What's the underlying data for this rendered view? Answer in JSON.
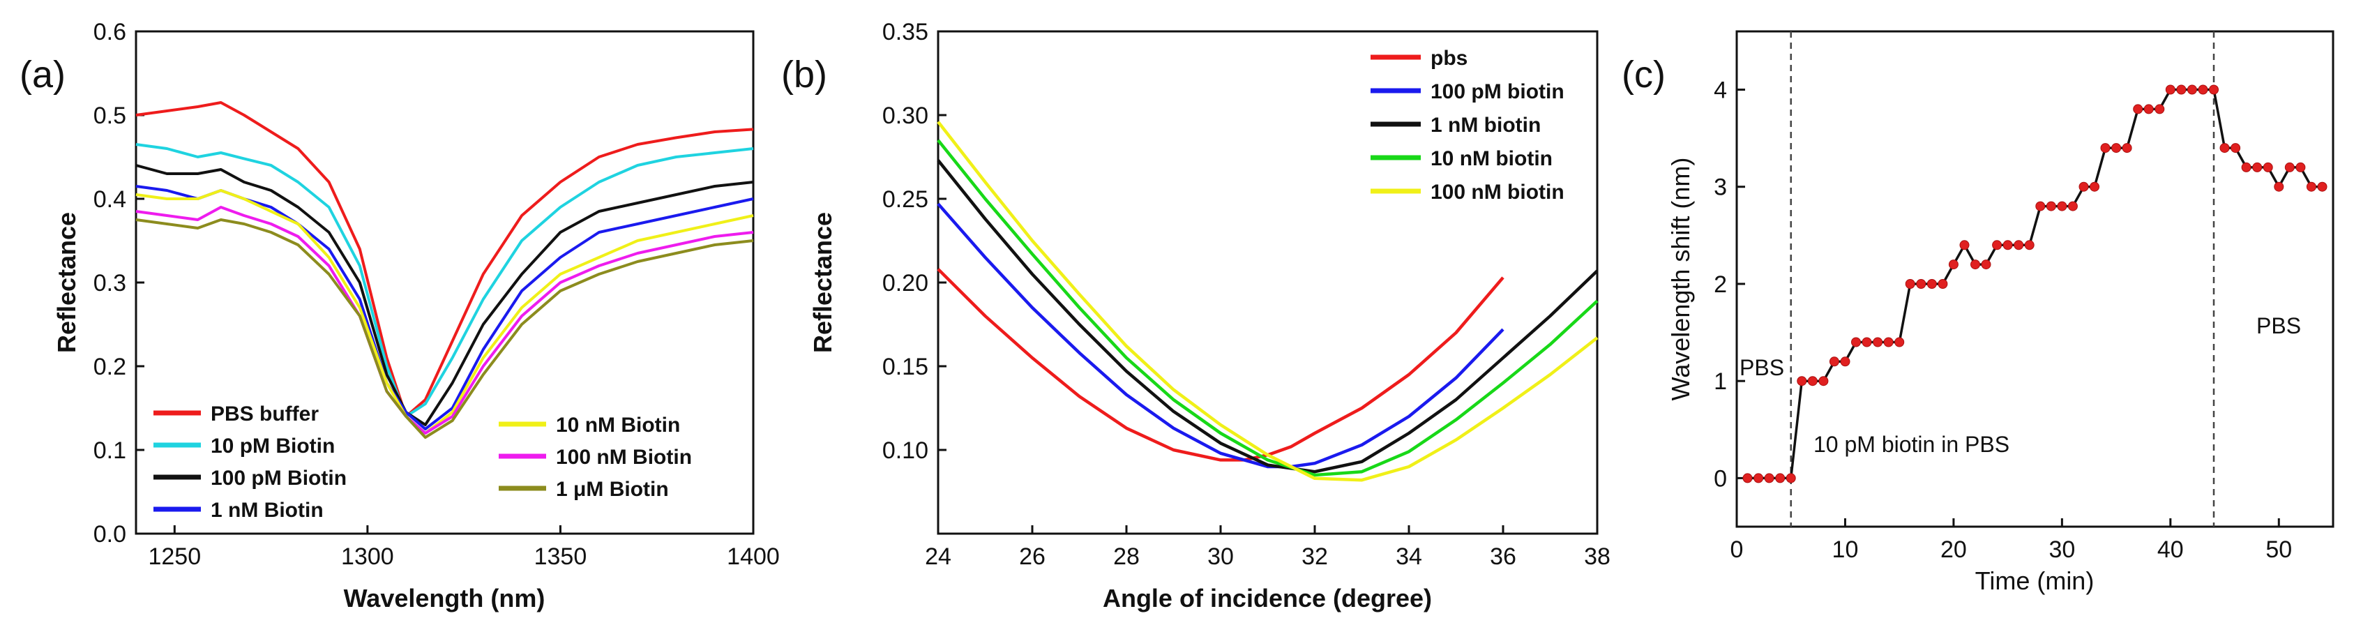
{
  "chart_data": [
    {
      "panel": "(a)",
      "type": "line",
      "xlabel": "Wavelength (nm)",
      "ylabel": "Reflectance",
      "xlim": [
        1240,
        1400
      ],
      "ylim": [
        0.0,
        0.6
      ],
      "xticks": [
        1250,
        1300,
        1350,
        1400
      ],
      "yticks": [
        "0.0",
        "0.1",
        "0.2",
        "0.3",
        "0.4",
        "0.5",
        "0.6"
      ],
      "legend_position": "bottom",
      "series": [
        {
          "name": "PBS buffer",
          "color": "#ee1c1c",
          "x": [
            1240,
            1248,
            1256,
            1262,
            1268,
            1275,
            1282,
            1290,
            1298,
            1305,
            1310,
            1315,
            1322,
            1330,
            1340,
            1350,
            1360,
            1370,
            1380,
            1390,
            1400
          ],
          "y": [
            0.5,
            0.505,
            0.51,
            0.515,
            0.5,
            0.48,
            0.46,
            0.42,
            0.34,
            0.21,
            0.14,
            0.16,
            0.23,
            0.31,
            0.38,
            0.42,
            0.45,
            0.465,
            0.473,
            0.48,
            0.483
          ]
        },
        {
          "name": "10 pM Biotin",
          "color": "#1fd3e0",
          "x": [
            1240,
            1248,
            1256,
            1262,
            1268,
            1275,
            1282,
            1290,
            1298,
            1305,
            1310,
            1315,
            1322,
            1330,
            1340,
            1350,
            1360,
            1370,
            1380,
            1390,
            1400
          ],
          "y": [
            0.465,
            0.46,
            0.45,
            0.455,
            0.448,
            0.44,
            0.42,
            0.39,
            0.32,
            0.2,
            0.14,
            0.155,
            0.21,
            0.28,
            0.35,
            0.39,
            0.42,
            0.44,
            0.45,
            0.455,
            0.46
          ]
        },
        {
          "name": "100 pM Biotin",
          "color": "#111111",
          "x": [
            1240,
            1248,
            1256,
            1262,
            1268,
            1275,
            1282,
            1290,
            1298,
            1305,
            1310,
            1315,
            1322,
            1330,
            1340,
            1350,
            1360,
            1370,
            1380,
            1390,
            1400
          ],
          "y": [
            0.44,
            0.43,
            0.43,
            0.435,
            0.42,
            0.41,
            0.39,
            0.36,
            0.3,
            0.19,
            0.145,
            0.13,
            0.18,
            0.25,
            0.31,
            0.36,
            0.385,
            0.395,
            0.405,
            0.415,
            0.42
          ]
        },
        {
          "name": "1 nM Biotin",
          "color": "#1a1aee",
          "x": [
            1240,
            1248,
            1256,
            1262,
            1268,
            1275,
            1282,
            1290,
            1298,
            1305,
            1310,
            1315,
            1322,
            1330,
            1340,
            1350,
            1360,
            1370,
            1380,
            1390,
            1400
          ],
          "y": [
            0.415,
            0.41,
            0.4,
            0.41,
            0.4,
            0.39,
            0.37,
            0.34,
            0.28,
            0.18,
            0.145,
            0.125,
            0.15,
            0.22,
            0.29,
            0.33,
            0.36,
            0.37,
            0.38,
            0.39,
            0.4
          ]
        },
        {
          "name": "10 nM Biotin",
          "color": "#f0f018",
          "x": [
            1240,
            1248,
            1256,
            1262,
            1268,
            1275,
            1282,
            1290,
            1298,
            1305,
            1310,
            1315,
            1322,
            1330,
            1340,
            1350,
            1360,
            1370,
            1380,
            1390,
            1400
          ],
          "y": [
            0.405,
            0.4,
            0.4,
            0.41,
            0.4,
            0.385,
            0.37,
            0.33,
            0.27,
            0.18,
            0.14,
            0.12,
            0.145,
            0.21,
            0.27,
            0.31,
            0.33,
            0.35,
            0.36,
            0.37,
            0.38
          ]
        },
        {
          "name": "100 nM Biotin",
          "color": "#ee1cee",
          "x": [
            1240,
            1248,
            1256,
            1262,
            1268,
            1275,
            1282,
            1290,
            1298,
            1305,
            1310,
            1315,
            1322,
            1330,
            1340,
            1350,
            1360,
            1370,
            1380,
            1390,
            1400
          ],
          "y": [
            0.385,
            0.38,
            0.375,
            0.39,
            0.38,
            0.37,
            0.355,
            0.32,
            0.26,
            0.17,
            0.14,
            0.12,
            0.14,
            0.2,
            0.26,
            0.3,
            0.32,
            0.335,
            0.345,
            0.355,
            0.36
          ]
        },
        {
          "name": "1 μM Biotin",
          "color": "#8c8c1e",
          "x": [
            1240,
            1248,
            1256,
            1262,
            1268,
            1275,
            1282,
            1290,
            1298,
            1305,
            1310,
            1315,
            1322,
            1330,
            1340,
            1350,
            1360,
            1370,
            1380,
            1390,
            1400
          ],
          "y": [
            0.375,
            0.37,
            0.365,
            0.375,
            0.37,
            0.36,
            0.345,
            0.31,
            0.26,
            0.17,
            0.14,
            0.115,
            0.135,
            0.19,
            0.25,
            0.29,
            0.31,
            0.325,
            0.335,
            0.345,
            0.35
          ]
        }
      ]
    },
    {
      "panel": "(b)",
      "type": "line",
      "xlabel": "Angle of incidence (degree)",
      "ylabel": "Reflectance",
      "xlim": [
        24,
        38
      ],
      "ylim": [
        0.05,
        0.35
      ],
      "xticks": [
        24,
        26,
        28,
        30,
        32,
        34,
        36,
        38
      ],
      "yticks": [
        "0.10",
        "0.15",
        "0.20",
        "0.25",
        "0.30",
        "0.35"
      ],
      "legend_position": "top-right",
      "series": [
        {
          "name": "pbs",
          "color": "#ee1c1c",
          "x": [
            24,
            25,
            26,
            27,
            28,
            29,
            30,
            30.5,
            31,
            31.5,
            32,
            33,
            34,
            35,
            36
          ],
          "y": [
            0.208,
            0.18,
            0.155,
            0.132,
            0.113,
            0.1,
            0.094,
            0.094,
            0.097,
            0.102,
            0.11,
            0.125,
            0.145,
            0.17,
            0.203
          ]
        },
        {
          "name": "100 pM biotin",
          "color": "#1a1aee",
          "x": [
            24,
            25,
            26,
            27,
            28,
            29,
            30,
            31,
            31.5,
            32,
            33,
            34,
            35,
            36
          ],
          "y": [
            0.247,
            0.215,
            0.185,
            0.158,
            0.133,
            0.113,
            0.098,
            0.09,
            0.09,
            0.092,
            0.103,
            0.12,
            0.143,
            0.172
          ]
        },
        {
          "name": "1 nM biotin",
          "color": "#111111",
          "x": [
            24,
            25,
            26,
            27,
            28,
            29,
            30,
            31,
            32,
            33,
            34,
            35,
            36,
            37,
            38
          ],
          "y": [
            0.273,
            0.238,
            0.205,
            0.175,
            0.147,
            0.123,
            0.104,
            0.091,
            0.087,
            0.093,
            0.11,
            0.13,
            0.155,
            0.18,
            0.207
          ]
        },
        {
          "name": "10 nM biotin",
          "color": "#18d818",
          "x": [
            24,
            25,
            26,
            27,
            28,
            29,
            30,
            31,
            32,
            33,
            34,
            35,
            36,
            37,
            38
          ],
          "y": [
            0.285,
            0.25,
            0.217,
            0.185,
            0.155,
            0.13,
            0.11,
            0.094,
            0.085,
            0.087,
            0.099,
            0.118,
            0.14,
            0.163,
            0.189
          ]
        },
        {
          "name": "100 nM biotin",
          "color": "#f0f018",
          "x": [
            24,
            25,
            26,
            27,
            28,
            29,
            30,
            31,
            32,
            33,
            34,
            35,
            36,
            37,
            38
          ],
          "y": [
            0.296,
            0.26,
            0.225,
            0.193,
            0.162,
            0.136,
            0.115,
            0.097,
            0.083,
            0.082,
            0.09,
            0.106,
            0.125,
            0.145,
            0.167
          ]
        }
      ]
    },
    {
      "panel": "(c)",
      "type": "line",
      "xlabel": "Time (min)",
      "ylabel": "Wavelength shift (nm)",
      "xlim": [
        0,
        55
      ],
      "ylim": [
        -0.5,
        4.6
      ],
      "xticks": [
        0,
        10,
        20,
        30,
        40,
        50
      ],
      "yticks": [
        0,
        1,
        2,
        3,
        4
      ],
      "line_color": "#111111",
      "marker_color": "#e02020",
      "x": [
        1,
        2,
        3,
        4,
        5,
        6,
        7,
        8,
        9,
        10,
        11,
        12,
        13,
        14,
        15,
        16,
        17,
        18,
        19,
        20,
        21,
        22,
        23,
        24,
        25,
        26,
        27,
        28,
        29,
        30,
        31,
        32,
        33,
        34,
        35,
        36,
        37,
        38,
        39,
        40,
        41,
        42,
        43,
        44,
        45,
        46,
        47,
        48,
        49,
        50,
        51,
        52,
        53,
        54
      ],
      "y": [
        0,
        0,
        0,
        0,
        0,
        1.0,
        1.0,
        1.0,
        1.2,
        1.2,
        1.4,
        1.4,
        1.4,
        1.4,
        1.4,
        2.0,
        2.0,
        2.0,
        2.0,
        2.2,
        2.4,
        2.2,
        2.2,
        2.4,
        2.4,
        2.4,
        2.4,
        2.8,
        2.8,
        2.8,
        2.8,
        3.0,
        3.0,
        3.4,
        3.4,
        3.4,
        3.8,
        3.8,
        3.8,
        4.0,
        4.0,
        4.0,
        4.0,
        4.0,
        3.4,
        3.4,
        3.2,
        3.2,
        3.2,
        3.0,
        3.2,
        3.2,
        3.0,
        3.0
      ],
      "vlines": [
        5,
        44
      ],
      "annotations": [
        "PBS",
        "10 pM biotin in PBS",
        "PBS"
      ]
    }
  ]
}
